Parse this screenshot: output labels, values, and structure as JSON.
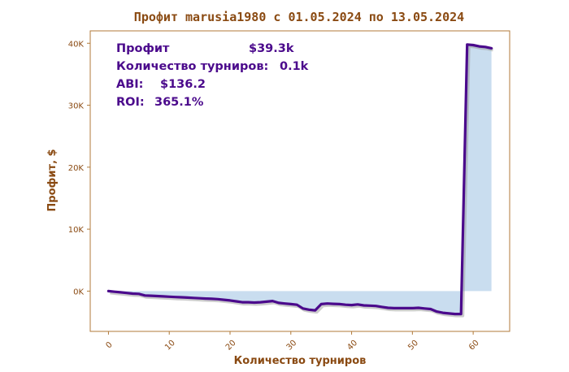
{
  "colors": {
    "axis": "#b07a3a",
    "text": "#8a4a12",
    "line": "#4b0a8c",
    "fill": "#c9ddef",
    "stats": "#4b0a8c"
  },
  "chart_data": {
    "type": "area",
    "title": "Профит marusia1980 с 01.05.2024 по 13.05.2024",
    "xlabel": "Количество турниров",
    "ylabel": "Профит, $",
    "xlim": [
      -3,
      66
    ],
    "ylim": [
      -6500,
      42000
    ],
    "x_ticks": [
      0,
      10,
      20,
      30,
      40,
      50,
      60
    ],
    "x_tick_labels": [
      "0",
      "10",
      "20",
      "30",
      "40",
      "50",
      "60"
    ],
    "y_ticks": [
      0,
      10000,
      20000,
      30000,
      40000
    ],
    "y_tick_labels": [
      "0K",
      "10K",
      "20K",
      "30K",
      "40K"
    ],
    "grid": false,
    "stats": {
      "profit_label": "Профит",
      "profit_value": "$39.3k",
      "tournaments_label": "Количество турниров:",
      "tournaments_value": "0.1k",
      "abi_label": "ABI:",
      "abi_value": "$136.2",
      "roi_label": "ROI:",
      "roi_value": "365.1%"
    },
    "series": [
      {
        "x": [
          0,
          1,
          2,
          3,
          4,
          5,
          6,
          7,
          8,
          9,
          10,
          11,
          12,
          13,
          14,
          15,
          16,
          17,
          18,
          19,
          20,
          21,
          22,
          23,
          24,
          25,
          26,
          27,
          28,
          29,
          30,
          31,
          32,
          33,
          34,
          35,
          36,
          37,
          38,
          39,
          40,
          41,
          42,
          43,
          44,
          45,
          46,
          47,
          48,
          49,
          50,
          51,
          52,
          53,
          54,
          55,
          56,
          57,
          58,
          59,
          60,
          61,
          62,
          63
        ],
        "values": [
          0,
          -100,
          -200,
          -300,
          -400,
          -450,
          -700,
          -750,
          -800,
          -850,
          -900,
          -950,
          -1000,
          -1050,
          -1100,
          -1150,
          -1200,
          -1250,
          -1300,
          -1400,
          -1500,
          -1650,
          -1800,
          -1800,
          -1850,
          -1800,
          -1700,
          -1600,
          -1900,
          -2000,
          -2100,
          -2200,
          -2800,
          -3000,
          -3100,
          -2100,
          -2000,
          -2050,
          -2100,
          -2200,
          -2250,
          -2150,
          -2300,
          -2350,
          -2400,
          -2550,
          -2700,
          -2750,
          -2750,
          -2750,
          -2750,
          -2700,
          -2800,
          -2900,
          -3300,
          -3500,
          -3600,
          -3700,
          -3700,
          39800,
          39700,
          39500,
          39400,
          39200
        ]
      }
    ]
  }
}
